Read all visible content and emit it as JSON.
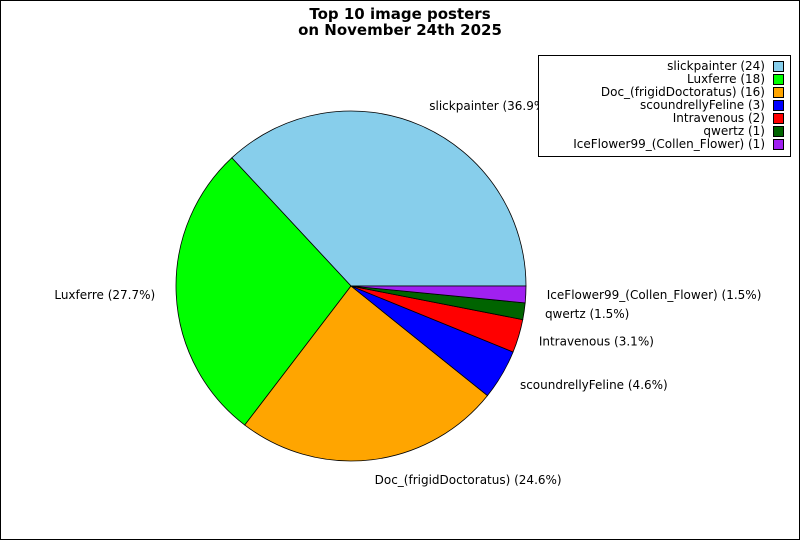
{
  "chart_data": {
    "type": "pie",
    "title": [
      "Top 10 image posters",
      "on November 24th 2025"
    ],
    "slices": [
      {
        "label": "slickpainter",
        "value": 24,
        "percent_label": "slickpainter (36.9%)",
        "legend": "slickpainter (24)",
        "color": "#87CEEB"
      },
      {
        "label": "Luxferre",
        "value": 18,
        "percent_label": "Luxferre (27.7%)",
        "legend": "Luxferre (18)",
        "color": "#00FF00"
      },
      {
        "label": "Doc_(frigidDoctoratus)",
        "value": 16,
        "percent_label": "Doc_(frigidDoctoratus) (24.6%)",
        "legend": "Doc_(frigidDoctoratus) (16)",
        "color": "#FFA500"
      },
      {
        "label": "scoundrellyFeline",
        "value": 3,
        "percent_label": "scoundrellyFeline (4.6%)",
        "legend": "scoundrellyFeline (3)",
        "color": "#0000FF"
      },
      {
        "label": "Intravenous",
        "value": 2,
        "percent_label": "Intravenous (3.1%)",
        "legend": "Intravenous (2)",
        "color": "#FF0000"
      },
      {
        "label": "qwertz",
        "value": 1,
        "percent_label": "qwertz (1.5%)",
        "legend": "qwertz (1)",
        "color": "#006400"
      },
      {
        "label": "IceFlower99_(Collen_Flower)",
        "value": 1,
        "percent_label": "IceFlower99_(Collen_Flower) (1.5%)",
        "legend": "IceFlower99_(Collen_Flower) (1)",
        "color": "#A020F0"
      }
    ],
    "start_angle_deg": 0,
    "direction": "counterclockwise",
    "legend_position": "top-right"
  }
}
